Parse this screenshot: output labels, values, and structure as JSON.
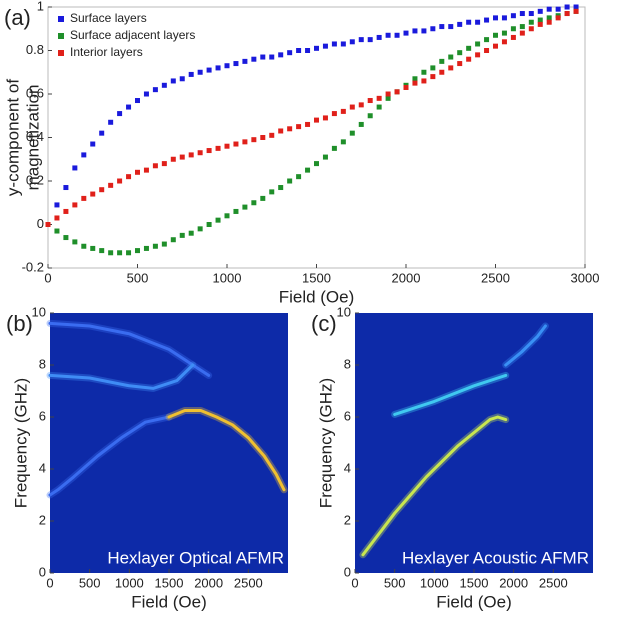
{
  "chart_data": [
    {
      "type": "scatter",
      "panel_label": "(a)",
      "xlabel": "Field (Oe)",
      "ylabel": [
        "y-component of",
        "magnetization"
      ],
      "xlim": [
        0,
        3000
      ],
      "ylim": [
        -0.2,
        1
      ],
      "xticks": [
        0,
        500,
        1000,
        1500,
        2000,
        2500,
        3000
      ],
      "yticks": [
        -0.2,
        0,
        0.2,
        0.4,
        0.6,
        0.8,
        1
      ],
      "legend": "upper left",
      "x": [
        0,
        50,
        100,
        150,
        200,
        250,
        300,
        350,
        400,
        450,
        500,
        550,
        600,
        650,
        700,
        750,
        800,
        850,
        900,
        950,
        1000,
        1050,
        1100,
        1150,
        1200,
        1250,
        1300,
        1350,
        1400,
        1450,
        1500,
        1550,
        1600,
        1650,
        1700,
        1750,
        1800,
        1850,
        1900,
        1950,
        2000,
        2050,
        2100,
        2150,
        2200,
        2250,
        2300,
        2350,
        2400,
        2450,
        2500,
        2550,
        2600,
        2650,
        2700,
        2750,
        2800,
        2850,
        2900,
        2950
      ],
      "series": [
        {
          "name": "Surface layers",
          "color": "#1a1adc",
          "values": [
            0.0,
            0.09,
            0.17,
            0.26,
            0.32,
            0.37,
            0.42,
            0.47,
            0.51,
            0.54,
            0.57,
            0.6,
            0.62,
            0.64,
            0.66,
            0.67,
            0.69,
            0.7,
            0.71,
            0.72,
            0.73,
            0.74,
            0.75,
            0.76,
            0.77,
            0.77,
            0.78,
            0.79,
            0.8,
            0.8,
            0.81,
            0.82,
            0.83,
            0.83,
            0.84,
            0.85,
            0.85,
            0.86,
            0.87,
            0.87,
            0.88,
            0.89,
            0.89,
            0.9,
            0.91,
            0.91,
            0.92,
            0.93,
            0.93,
            0.94,
            0.95,
            0.95,
            0.96,
            0.97,
            0.97,
            0.98,
            0.99,
            0.99,
            1.0,
            1.0
          ]
        },
        {
          "name": "Surface adjacent layers",
          "color": "#1f8f2a",
          "values": [
            0,
            -0.03,
            -0.06,
            -0.08,
            -0.1,
            -0.11,
            -0.12,
            -0.13,
            -0.13,
            -0.13,
            -0.12,
            -0.11,
            -0.1,
            -0.09,
            -0.07,
            -0.05,
            -0.04,
            -0.02,
            0.0,
            0.02,
            0.04,
            0.06,
            0.08,
            0.1,
            0.12,
            0.15,
            0.17,
            0.2,
            0.22,
            0.25,
            0.28,
            0.31,
            0.35,
            0.38,
            0.42,
            0.46,
            0.5,
            0.54,
            0.58,
            0.61,
            0.64,
            0.67,
            0.7,
            0.72,
            0.75,
            0.77,
            0.79,
            0.81,
            0.83,
            0.85,
            0.87,
            0.88,
            0.9,
            0.91,
            0.93,
            0.94,
            0.95,
            0.96,
            0.97,
            0.98
          ]
        },
        {
          "name": "Interior layers",
          "color": "#e0201a",
          "values": [
            0,
            0.03,
            0.06,
            0.09,
            0.12,
            0.14,
            0.16,
            0.18,
            0.2,
            0.22,
            0.24,
            0.25,
            0.27,
            0.28,
            0.3,
            0.31,
            0.32,
            0.33,
            0.34,
            0.35,
            0.36,
            0.37,
            0.38,
            0.39,
            0.4,
            0.41,
            0.43,
            0.44,
            0.45,
            0.46,
            0.48,
            0.49,
            0.51,
            0.52,
            0.54,
            0.55,
            0.57,
            0.58,
            0.6,
            0.61,
            0.63,
            0.65,
            0.66,
            0.68,
            0.7,
            0.72,
            0.74,
            0.76,
            0.78,
            0.8,
            0.82,
            0.84,
            0.86,
            0.88,
            0.9,
            0.92,
            0.93,
            0.95,
            0.97,
            0.98
          ]
        }
      ]
    },
    {
      "type": "line",
      "panel_label": "(b)",
      "xlabel": "Field (Oe)",
      "ylabel": "Frequency (GHz)",
      "annotation": "Hexlayer Optical AFMR",
      "background": "#0d2aa8",
      "xlim": [
        0,
        3000
      ],
      "ylim": [
        0,
        10
      ],
      "xticks": [
        0,
        500,
        1000,
        1500,
        2000,
        2500
      ],
      "yticks": [
        0,
        2,
        4,
        6,
        8,
        10
      ],
      "series": [
        {
          "color": "#3a6cf0",
          "x": [
            0,
            500,
            1000,
            1500,
            1800,
            2000
          ],
          "values": [
            9.6,
            9.5,
            9.2,
            8.6,
            8.0,
            7.6
          ]
        },
        {
          "color": "#3f8cf5",
          "x": [
            0,
            500,
            1000,
            1300,
            1600,
            1800
          ],
          "values": [
            7.6,
            7.5,
            7.2,
            7.1,
            7.4,
            8.0
          ]
        },
        {
          "color": "#3a6cf0",
          "x": [
            0,
            100,
            300,
            600,
            900,
            1200,
            1500
          ],
          "values": [
            3.0,
            3.2,
            3.7,
            4.5,
            5.2,
            5.8,
            6.0
          ]
        },
        {
          "color": "#f0c030",
          "x": [
            1500,
            1700,
            1900,
            2100,
            2300,
            2500,
            2700,
            2850,
            2950
          ],
          "values": [
            6.0,
            6.25,
            6.25,
            6.0,
            5.7,
            5.2,
            4.5,
            3.8,
            3.2
          ]
        }
      ]
    },
    {
      "type": "line",
      "panel_label": "(c)",
      "xlabel": "Field (Oe)",
      "ylabel": "Frequency (GHz)",
      "annotation": "Hexlayer Acoustic AFMR",
      "background": "#0d2aa8",
      "xlim": [
        0,
        3000
      ],
      "ylim": [
        0,
        10
      ],
      "xticks": [
        0,
        500,
        1000,
        1500,
        2000,
        2500
      ],
      "yticks": [
        0,
        2,
        4,
        6,
        8,
        10
      ],
      "series": [
        {
          "color": "#c8e650",
          "x": [
            100,
            300,
            500,
            700,
            900,
            1100,
            1300,
            1500,
            1700,
            1800,
            1900
          ],
          "values": [
            0.7,
            1.5,
            2.3,
            3.0,
            3.7,
            4.3,
            4.9,
            5.4,
            5.9,
            6.0,
            5.9
          ]
        },
        {
          "color": "#40c8f0",
          "x": [
            500,
            1000,
            1500,
            1800,
            1900
          ],
          "values": [
            6.1,
            6.6,
            7.2,
            7.5,
            7.6
          ]
        },
        {
          "color": "#3a90f5",
          "x": [
            1900,
            2100,
            2300,
            2400
          ],
          "values": [
            8.0,
            8.5,
            9.1,
            9.5
          ]
        }
      ]
    }
  ]
}
